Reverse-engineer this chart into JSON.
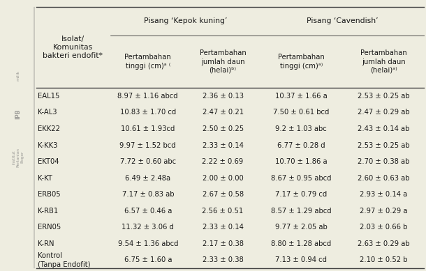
{
  "col_header_row1_left": "Isolat/\nKomunitas\nbakteri endofit*",
  "col_header_row1_kepok": "Pisang ‘Kepok kuning’",
  "col_header_row1_cav": "Pisang ‘Cavendish’",
  "col_header_row2": [
    "Pertambahan\ntinggi (cm)ᵃ ⁽",
    "Pertambahan\njumlah daun\n(helai)ᵇ⁾",
    "Pertambahan\ntinggi (cm)ᵃ⁾",
    "Pertambahan\njumlah daun\n(helai)ᵃ⁾"
  ],
  "rows": [
    [
      "EAL15",
      "8.97 ± 1.16 abcd",
      "2.36 ± 0.13",
      "10.37 ± 1.66 a",
      "2.53 ± 0.25 ab"
    ],
    [
      "K-AL3",
      "10.83 ± 1.70 cd",
      "2.47 ± 0.21",
      "7.50 ± 0.61 bcd",
      "2.47 ± 0.29 ab"
    ],
    [
      "EKK22",
      "10.61 ± 1.93cd",
      "2.50 ± 0.25",
      "9.2 ± 1.03 abc",
      "2.43 ± 0.14 ab"
    ],
    [
      "K-KK3",
      "9.97 ± 1.52 bcd",
      "2.33 ± 0.14",
      "6.77 ± 0.28 d",
      "2.53 ± 0.25 ab"
    ],
    [
      "EKT04",
      "7.72 ± 0.60 abc",
      "2.22 ± 0.69",
      "10.70 ± 1.86 a",
      "2.70 ± 0.38 ab"
    ],
    [
      "K-KT",
      "6.49 ± 2.48a",
      "2.00 ± 0.00",
      "8.67 ± 0.95 abcd",
      "2.60 ± 0.63 ab"
    ],
    [
      "ERB05",
      "7.17 ± 0.83 ab",
      "2.67 ± 0.58",
      "7.17 ± 0.79 cd",
      "2.93 ± 0.14 a"
    ],
    [
      "K-RB1",
      "6.57 ± 0.46 a",
      "2.56 ± 0.51",
      "8.57 ± 1.29 abcd",
      "2.97 ± 0.29 a"
    ],
    [
      "ERN05",
      "11.32 ± 3.06 d",
      "2.33 ± 0.14",
      "9.77 ± 2.05 ab",
      "2.03 ± 0.66 b"
    ],
    [
      "K-RN",
      "9.54 ± 1.36 abcd",
      "2.17 ± 0.38",
      "8.80 ± 1.28 abcd",
      "2.63 ± 0.29 ab"
    ],
    [
      "Kontrol\n(Tanpa Endofit)",
      "6.75 ± 1.60 a",
      "2.33 ± 0.38",
      "7.13 ± 0.94 cd",
      "2.10 ± 0.52 b"
    ]
  ],
  "bg_color": "#eeede0",
  "text_color": "#1a1a1a",
  "line_color": "#444444",
  "font_size": 7.2,
  "header_font_size": 7.8
}
